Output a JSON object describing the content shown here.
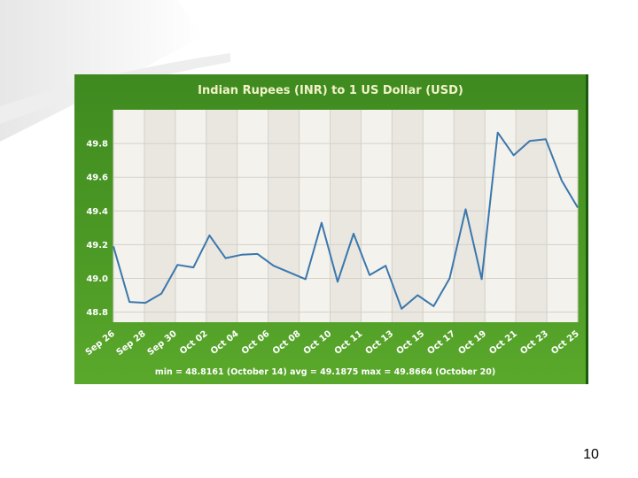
{
  "page": {
    "number": "10"
  },
  "colors": {
    "panel": "#4a9624",
    "line": "#3b77ad",
    "plot_bg": "#f4f2ec"
  },
  "chart_data": {
    "type": "line",
    "title": "Indian Rupees (INR) to 1 US Dollar (USD)",
    "xlabel": "",
    "ylabel": "",
    "ylim": [
      48.74,
      50.0
    ],
    "grid": true,
    "y_ticks": [
      "48.8",
      "49.0",
      "49.2",
      "49.4",
      "49.6",
      "49.8"
    ],
    "x_tick_labels": [
      "Sep 26",
      "Sep 28",
      "Sep 30",
      "Oct 02",
      "Oct 04",
      "Oct 06",
      "Oct 08",
      "Oct 10",
      "Oct 11",
      "Oct 13",
      "Oct 15",
      "Oct 17",
      "Oct 19",
      "Oct 21",
      "Oct 23",
      "Oct 25"
    ],
    "series": [
      {
        "values": [
          49.19,
          48.86,
          48.855,
          48.91,
          49.08,
          49.065,
          49.255,
          49.12,
          49.14,
          49.145,
          49.075,
          49.035,
          48.995,
          49.33,
          48.98,
          49.265,
          49.02,
          49.075,
          48.82,
          48.9,
          48.835,
          49.0,
          49.41,
          48.995,
          49.865,
          49.73,
          49.815,
          49.825,
          49.58,
          49.42
        ]
      }
    ],
    "stats": "min = 48.8161 (October 14)  avg = 49.1875   max = 49.8664 (October 20)"
  }
}
